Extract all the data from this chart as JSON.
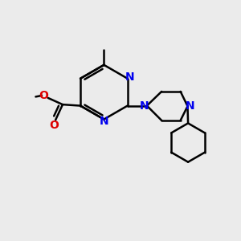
{
  "background_color": "#ebebeb",
  "bond_color": "#000000",
  "nitrogen_color": "#0000ee",
  "oxygen_color": "#dd0000",
  "figsize": [
    3.0,
    3.0
  ],
  "dpi": 100,
  "xlim": [
    0,
    10
  ],
  "ylim": [
    0,
    10
  ]
}
